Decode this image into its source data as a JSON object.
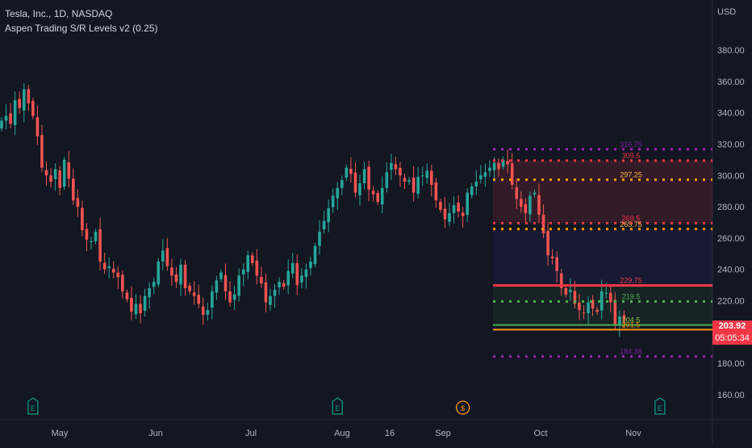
{
  "header": {
    "symbol_line": "Tesla, Inc., 1D, NASDAQ",
    "indicator_line": "Aspen Trading S/R Levels v2 (0.25)"
  },
  "price_axis": {
    "currency": "USD",
    "last_price": "203.92",
    "countdown": "05:05:34"
  },
  "colors": {
    "background": "#131722",
    "up": "#26a69a",
    "down": "#ef5350",
    "grid": "#1e222d",
    "axis_text": "#b2b5be",
    "resistance": "#f23645",
    "support": "#ff9800",
    "extreme": "#9c27b0",
    "support_green": "#4caf50",
    "earnings_badge": "#089981",
    "dividend_badge": "#ff9800"
  },
  "chart_data": {
    "type": "candlestick",
    "title": "Tesla, Inc., 1D, NASDAQ",
    "y_axis_ticks": [
      "160.00",
      "180.00",
      "200.00",
      "220.00",
      "240.00",
      "260.00",
      "280.00",
      "300.00",
      "320.00",
      "340.00",
      "360.00",
      "380.00"
    ],
    "x_axis_ticks": [
      "May",
      "Jun",
      "Jul",
      "Aug",
      "16",
      "Sep",
      "Oct",
      "Nov"
    ],
    "ylim": [
      144,
      412
    ],
    "grid": false,
    "close_series": [
      335,
      338,
      333,
      348,
      343,
      355,
      346,
      338,
      325,
      305,
      300,
      296,
      304,
      292,
      310,
      298,
      284,
      280,
      265,
      259,
      258,
      264,
      245,
      240,
      242,
      238,
      235,
      226,
      221,
      213,
      218,
      212,
      223,
      228,
      232,
      245,
      252,
      242,
      236,
      232,
      243,
      228,
      226,
      223,
      218,
      211,
      214,
      226,
      233,
      238,
      226,
      219,
      224,
      236,
      240,
      249,
      244,
      236,
      231,
      219,
      223,
      227,
      232,
      229,
      239,
      244,
      230,
      236,
      240,
      245,
      255,
      264,
      271,
      279,
      287,
      292,
      297,
      305,
      301,
      289,
      295,
      304,
      291,
      288,
      283,
      292,
      302,
      308,
      304,
      300,
      296,
      297,
      289,
      299,
      300,
      303,
      294,
      284,
      278,
      272,
      276,
      281,
      277,
      274,
      289,
      293,
      296,
      300,
      302,
      305,
      308,
      304,
      310,
      307,
      294,
      285,
      280,
      276,
      287,
      289,
      275,
      263,
      249,
      247,
      239,
      228,
      224,
      227,
      218,
      214,
      212,
      219,
      215,
      213,
      226,
      225,
      219,
      205,
      210,
      207
    ],
    "levels": [
      {
        "label": "316.75",
        "value": 316.75
      },
      {
        "label": "309.5",
        "value": 309.5
      },
      {
        "label": "297.25",
        "value": 297.25
      },
      {
        "label": "269.5",
        "value": 269.5
      },
      {
        "label": "265.75",
        "value": 265.75
      },
      {
        "label": "229.75",
        "value": 229.75
      },
      {
        "label": "219.5",
        "value": 219.5
      },
      {
        "label": "204.5",
        "value": 204.5
      },
      {
        "label": "201.5",
        "value": 201.5
      },
      {
        "label": "184.38",
        "value": 184.38
      }
    ],
    "event_badges": [
      {
        "label": "E",
        "kind": "earnings",
        "index": 7
      },
      {
        "label": "E",
        "kind": "earnings",
        "index": 75
      },
      {
        "label": "$",
        "kind": "dividend",
        "index": 103
      },
      {
        "label": "E",
        "kind": "earnings",
        "index": 147
      }
    ]
  }
}
